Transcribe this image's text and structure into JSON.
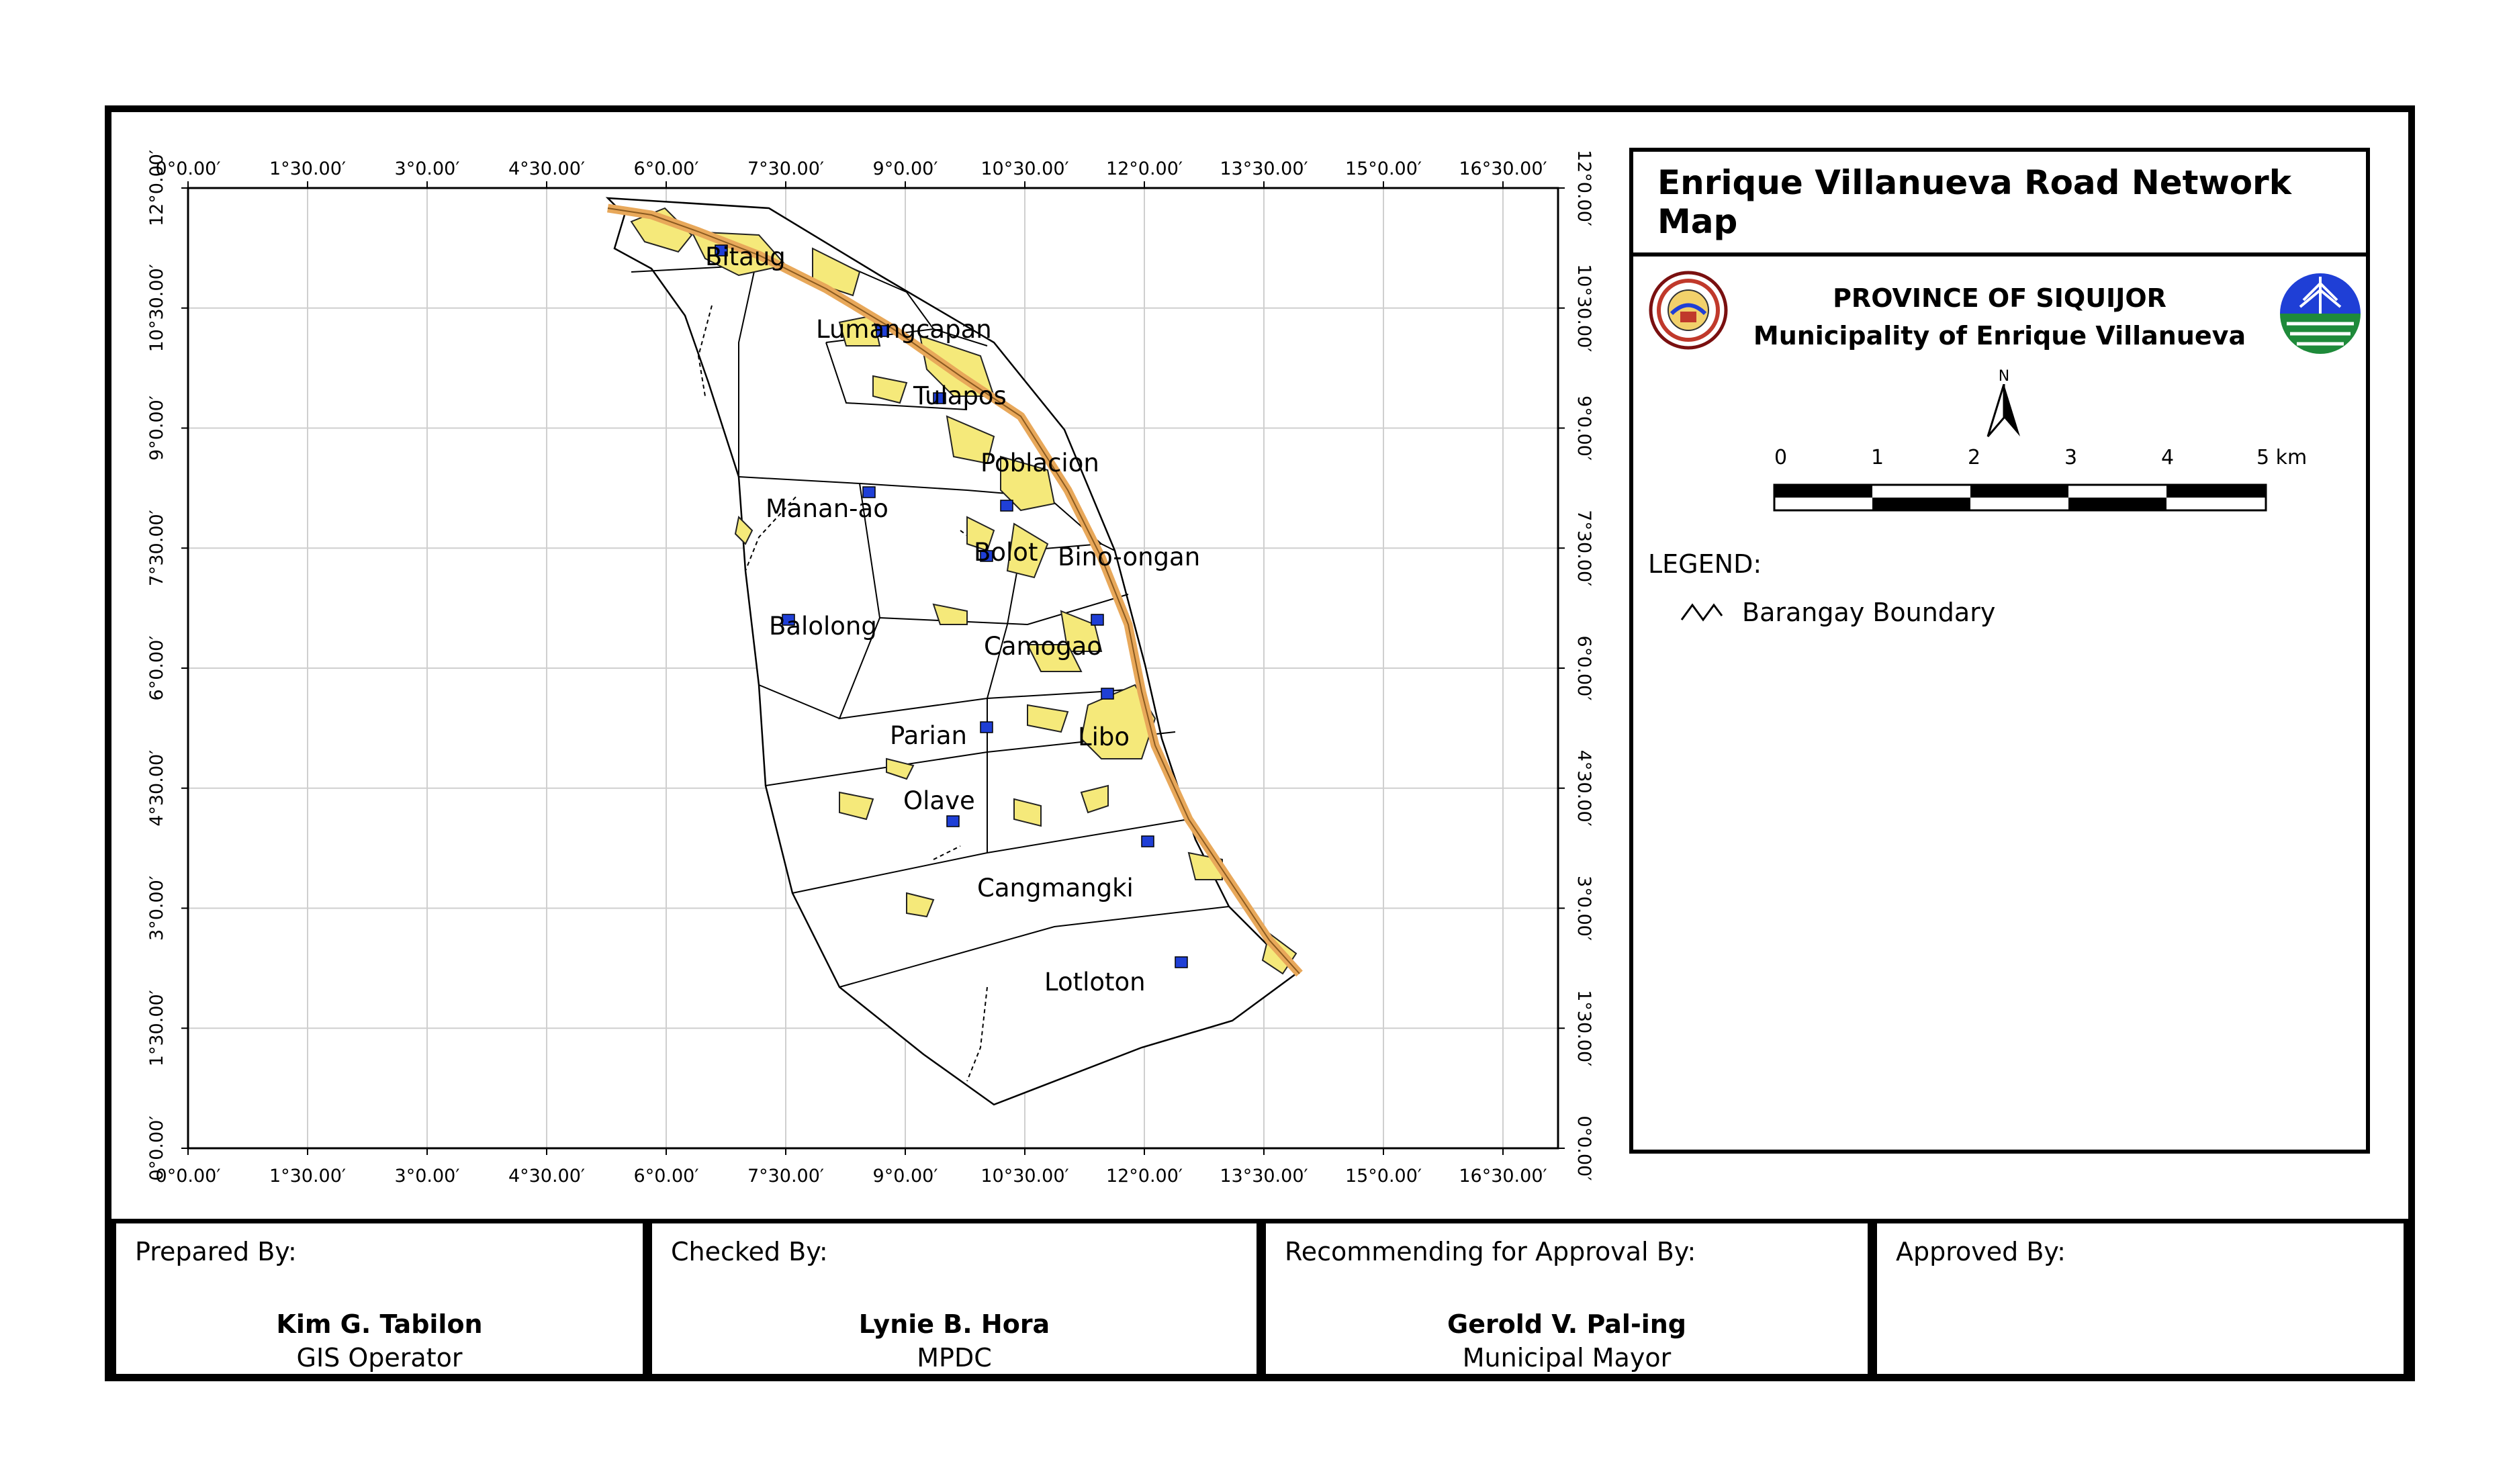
{
  "map": {
    "title": "Enrique Villanueva Road Network Map",
    "province": "PROVINCE OF SIQUIJOR",
    "municipality": "Municipality of Enrique Villanueva",
    "north_label": "N",
    "scale_labels": [
      "0",
      "1",
      "2",
      "3",
      "4",
      "5 km"
    ],
    "legend_title": "LEGEND:",
    "legend_items": [
      {
        "label": "Barangay Boundary",
        "icon": "boundary-line-icon"
      }
    ],
    "grid_x_labels": [
      "0°0.00′",
      "1°30.00′",
      "3°0.00′",
      "4°30.00′",
      "6°0.00′",
      "7°30.00′",
      "9°0.00′",
      "10°30.00′",
      "12°0.00′",
      "13°30.00′",
      "15°0.00′",
      "16°30.00′"
    ],
    "grid_y_labels": [
      "12°0.00′",
      "10°30.00′",
      "9°0.00′",
      "7°30.00′",
      "6°0.00′",
      "4°30.00′",
      "3°0.00′",
      "1°30.00′",
      "0°0.00′"
    ],
    "barangays": [
      "Bitaug",
      "Lumangcapan",
      "Tulapos",
      "Poblacion",
      "Manan-ao",
      "Bolot",
      "Bino-ongan",
      "Balolong",
      "Camogao",
      "Parian",
      "Libo",
      "Olave",
      "Cangmangki",
      "Lotloton"
    ],
    "colors": {
      "road": "#e8a85a",
      "built_up": "#f5e97a",
      "marker": "#1f3fd6",
      "boundary": "#000000"
    }
  },
  "signatures": [
    {
      "label": "Prepared By:",
      "name": "Kim G. Tabilon",
      "role": "GIS Operator"
    },
    {
      "label": "Checked By:",
      "name": "Lynie B. Hora",
      "role": "MPDC"
    },
    {
      "label": "Recommending for Approval By:",
      "name": "Gerold V. Pal-ing",
      "role": "Municipal Mayor"
    },
    {
      "label": "Approved By:",
      "name": "",
      "role": ""
    }
  ]
}
